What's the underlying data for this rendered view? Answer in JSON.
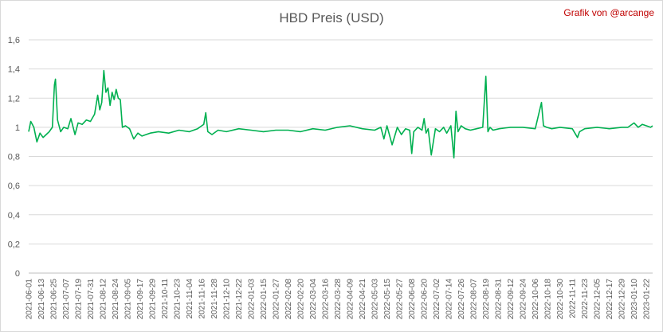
{
  "chart_data": {
    "type": "line",
    "title": "HBD Preis (USD)",
    "credit": "Grafik von @arcange",
    "xlabel": "",
    "ylabel": "",
    "ylim": [
      0,
      1.6
    ],
    "yticks": [
      "0",
      "0,2",
      "0,4",
      "0,6",
      "0,8",
      "1",
      "1,2",
      "1,4",
      "1,6"
    ],
    "grid": true,
    "legend": "none",
    "series_color": "#00b050",
    "x_tick_labels": [
      "2021-06-01",
      "2021-06-13",
      "2021-06-25",
      "2021-07-07",
      "2021-07-19",
      "2021-07-31",
      "2021-08-12",
      "2021-08-24",
      "2021-09-05",
      "2021-09-17",
      "2021-09-29",
      "2021-10-11",
      "2021-10-23",
      "2021-11-04",
      "2021-11-16",
      "2021-11-28",
      "2021-12-10",
      "2021-12-22",
      "2022-01-03",
      "2022-01-15",
      "2022-01-27",
      "2022-02-08",
      "2022-02-20",
      "2022-03-04",
      "2022-03-16",
      "2022-03-28",
      "2022-04-09",
      "2022-04-21",
      "2022-05-03",
      "2022-05-15",
      "2022-05-27",
      "2022-06-08",
      "2022-06-20",
      "2022-07-02",
      "2022-07-14",
      "2022-07-26",
      "2022-08-07",
      "2022-08-19",
      "2022-08-31",
      "2022-09-12",
      "2022-09-24",
      "2022-10-06",
      "2022-10-18",
      "2022-10-30",
      "2022-11-11",
      "2022-11-23",
      "2022-12-05",
      "2022-12-17",
      "2022-12-29",
      "2023-01-10",
      "2023-01-22"
    ],
    "series": [
      {
        "x": [
          "2021-06-01",
          "2021-06-03",
          "2021-06-06",
          "2021-06-09",
          "2021-06-12",
          "2021-06-15",
          "2021-06-18",
          "2021-06-21",
          "2021-06-24",
          "2021-06-26",
          "2021-06-27",
          "2021-06-29",
          "2021-07-02",
          "2021-07-05",
          "2021-07-09",
          "2021-07-12",
          "2021-07-16",
          "2021-07-19",
          "2021-07-23",
          "2021-07-27",
          "2021-07-31",
          "2021-08-04",
          "2021-08-07",
          "2021-08-09",
          "2021-08-11",
          "2021-08-13",
          "2021-08-15",
          "2021-08-17",
          "2021-08-19",
          "2021-08-21",
          "2021-08-23",
          "2021-08-25",
          "2021-08-27",
          "2021-08-29",
          "2021-08-31",
          "2021-09-03",
          "2021-09-07",
          "2021-09-11",
          "2021-09-15",
          "2021-09-19",
          "2021-09-23",
          "2021-09-27",
          "2021-10-05",
          "2021-10-15",
          "2021-10-25",
          "2021-11-04",
          "2021-11-12",
          "2021-11-18",
          "2021-11-20",
          "2021-11-22",
          "2021-11-26",
          "2021-12-02",
          "2021-12-10",
          "2021-12-22",
          "2022-01-03",
          "2022-01-15",
          "2022-01-27",
          "2022-02-08",
          "2022-02-20",
          "2022-03-04",
          "2022-03-16",
          "2022-03-28",
          "2022-04-09",
          "2022-04-21",
          "2022-05-03",
          "2022-05-09",
          "2022-05-12",
          "2022-05-15",
          "2022-05-20",
          "2022-05-25",
          "2022-05-29",
          "2022-06-02",
          "2022-06-06",
          "2022-06-08",
          "2022-06-10",
          "2022-06-14",
          "2022-06-18",
          "2022-06-20",
          "2022-06-22",
          "2022-06-24",
          "2022-06-27",
          "2022-07-01",
          "2022-07-05",
          "2022-07-09",
          "2022-07-12",
          "2022-07-16",
          "2022-07-19",
          "2022-07-21",
          "2022-07-23",
          "2022-07-26",
          "2022-07-30",
          "2022-08-04",
          "2022-08-10",
          "2022-08-16",
          "2022-08-19",
          "2022-08-21",
          "2022-08-23",
          "2022-08-26",
          "2022-09-01",
          "2022-09-12",
          "2022-09-24",
          "2022-10-06",
          "2022-10-12",
          "2022-10-14",
          "2022-10-17",
          "2022-10-22",
          "2022-10-30",
          "2022-11-11",
          "2022-11-16",
          "2022-11-18",
          "2022-11-23",
          "2022-12-05",
          "2022-12-17",
          "2022-12-29",
          "2023-01-04",
          "2023-01-10",
          "2023-01-14",
          "2023-01-18",
          "2023-01-22",
          "2023-01-26",
          "2023-01-28"
        ],
        "values": [
          0.97,
          1.04,
          1.0,
          0.9,
          0.96,
          0.93,
          0.95,
          0.97,
          1.0,
          1.29,
          1.33,
          1.05,
          0.97,
          1.0,
          0.99,
          1.06,
          0.95,
          1.03,
          1.02,
          1.05,
          1.04,
          1.09,
          1.22,
          1.12,
          1.17,
          1.39,
          1.24,
          1.27,
          1.15,
          1.24,
          1.19,
          1.26,
          1.2,
          1.19,
          1.0,
          1.01,
          0.99,
          0.92,
          0.96,
          0.94,
          0.95,
          0.96,
          0.97,
          0.96,
          0.98,
          0.97,
          0.99,
          1.02,
          1.1,
          0.97,
          0.95,
          0.98,
          0.97,
          0.99,
          0.98,
          0.97,
          0.98,
          0.98,
          0.97,
          0.99,
          0.98,
          1.0,
          1.01,
          0.99,
          0.98,
          1.0,
          0.92,
          1.01,
          0.88,
          1.0,
          0.95,
          0.99,
          0.98,
          0.82,
          0.97,
          1.0,
          0.98,
          1.06,
          0.96,
          0.99,
          0.81,
          0.99,
          0.97,
          1.0,
          0.96,
          1.01,
          0.79,
          1.11,
          0.97,
          1.01,
          0.99,
          0.98,
          0.99,
          1.0,
          1.35,
          0.97,
          1.0,
          0.98,
          0.99,
          1.0,
          1.0,
          0.99,
          1.17,
          1.01,
          1.0,
          0.99,
          1.0,
          0.99,
          0.93,
          0.97,
          0.99,
          1.0,
          0.99,
          1.0,
          1.0,
          1.03,
          1.0,
          1.02,
          1.01,
          1.0,
          1.01
        ]
      }
    ]
  }
}
